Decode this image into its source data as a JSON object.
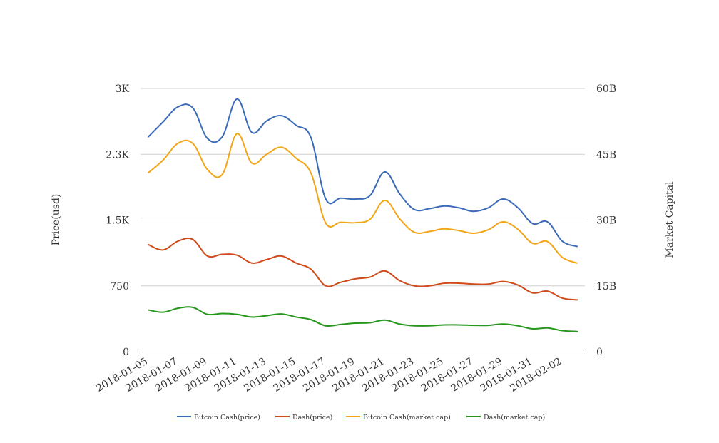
{
  "chart_data": {
    "type": "line",
    "title": "",
    "grid": true,
    "legend_position": "bottom",
    "y_left": {
      "label": "Price(usd)",
      "range": [
        0,
        3000
      ],
      "ticks": [
        0,
        750,
        1500,
        2250,
        3000
      ],
      "tick_labels": [
        "0",
        "750",
        "1.5K",
        "2.3K",
        "3K"
      ]
    },
    "y_right": {
      "label": "Market Capital",
      "range": [
        0,
        60000000000
      ],
      "ticks": [
        0,
        15000000000,
        30000000000,
        45000000000,
        60000000000
      ],
      "tick_labels": [
        "0",
        "15B",
        "30B",
        "45B",
        "60B"
      ]
    },
    "x": {
      "categories": [
        "2018-01-05",
        "2018-01-06",
        "2018-01-07",
        "2018-01-08",
        "2018-01-09",
        "2018-01-10",
        "2018-01-11",
        "2018-01-12",
        "2018-01-13",
        "2018-01-14",
        "2018-01-15",
        "2018-01-16",
        "2018-01-17",
        "2018-01-18",
        "2018-01-19",
        "2018-01-20",
        "2018-01-21",
        "2018-01-22",
        "2018-01-23",
        "2018-01-24",
        "2018-01-25",
        "2018-01-26",
        "2018-01-27",
        "2018-01-28",
        "2018-01-29",
        "2018-01-30",
        "2018-01-31",
        "2018-02-01",
        "2018-02-02",
        "2018-02-03"
      ],
      "tick_labels": [
        "2018-01-05",
        "2018-01-07",
        "2018-01-09",
        "2018-01-11",
        "2018-01-13",
        "2018-01-15",
        "2018-01-17",
        "2018-01-19",
        "2018-01-21",
        "2018-01-23",
        "2018-01-25",
        "2018-01-27",
        "2018-01-29",
        "2018-01-31",
        "2018-02-02"
      ]
    },
    "series": [
      {
        "name": "Bitcoin Cash(price)",
        "axis": "left",
        "color": "#3b6bb6",
        "values": [
          2450,
          2620,
          2790,
          2780,
          2430,
          2450,
          2880,
          2500,
          2630,
          2690,
          2580,
          2440,
          1740,
          1750,
          1740,
          1780,
          2050,
          1800,
          1620,
          1630,
          1660,
          1640,
          1600,
          1640,
          1740,
          1640,
          1460,
          1480,
          1260,
          1200
        ]
      },
      {
        "name": "Dash(price)",
        "axis": "left",
        "color": "#d04a1b",
        "values": [
          1220,
          1160,
          1260,
          1280,
          1090,
          1110,
          1100,
          1010,
          1050,
          1090,
          1010,
          940,
          750,
          790,
          830,
          850,
          920,
          810,
          750,
          750,
          780,
          780,
          770,
          770,
          800,
          760,
          670,
          690,
          610,
          590
        ]
      },
      {
        "name": "Bitcoin Cash(market cap)",
        "axis": "right",
        "color": "#f2a516",
        "values": [
          40800000000,
          43700000000,
          47500000000,
          47500000000,
          41500000000,
          40400000000,
          49700000000,
          43000000000,
          45000000000,
          46600000000,
          44100000000,
          40700000000,
          29300000000,
          29500000000,
          29400000000,
          30200000000,
          34500000000,
          30300000000,
          27200000000,
          27400000000,
          28000000000,
          27600000000,
          27000000000,
          27800000000,
          29600000000,
          27900000000,
          24700000000,
          25100000000,
          21500000000,
          20200000000
        ]
      },
      {
        "name": "Dash(market cap)",
        "axis": "right",
        "color": "#26961c",
        "values": [
          9500000000,
          9000000000,
          9900000000,
          10100000000,
          8500000000,
          8700000000,
          8500000000,
          7900000000,
          8200000000,
          8600000000,
          7900000000,
          7300000000,
          5900000000,
          6200000000,
          6500000000,
          6600000000,
          7200000000,
          6300000000,
          5900000000,
          5900000000,
          6100000000,
          6100000000,
          6000000000,
          6000000000,
          6300000000,
          5900000000,
          5200000000,
          5400000000,
          4800000000,
          4600000000
        ]
      }
    ]
  }
}
